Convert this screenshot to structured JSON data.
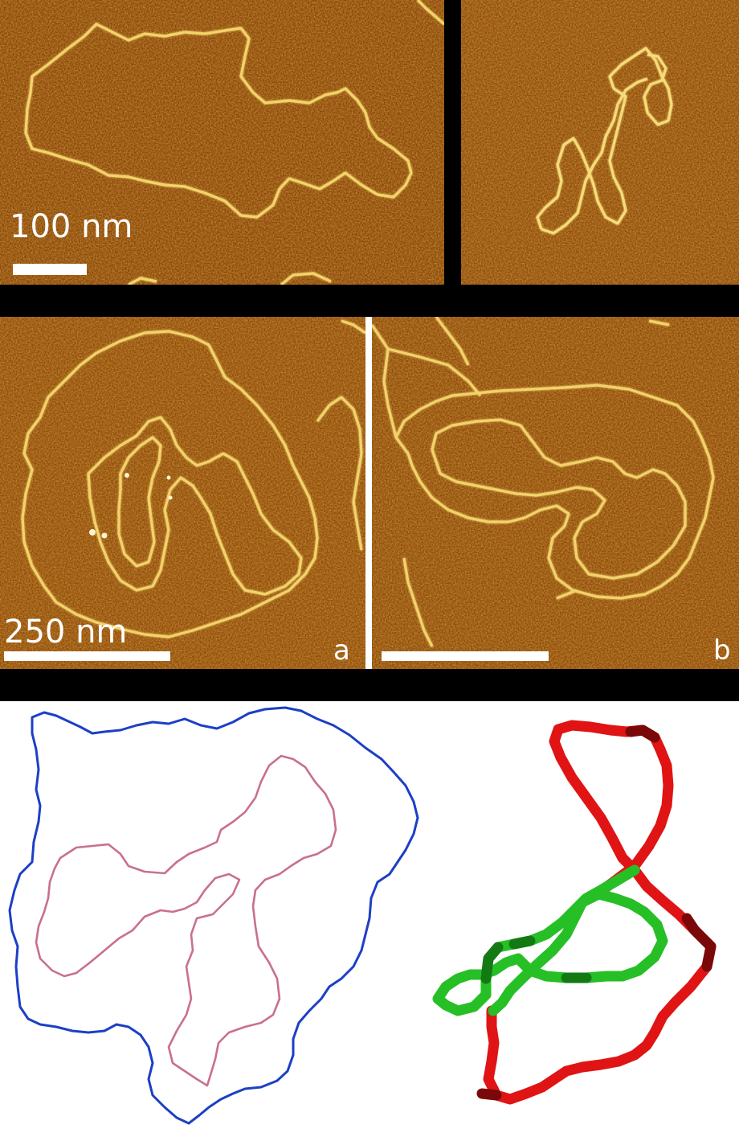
{
  "figure": {
    "top_left": {
      "scale_label": "100 nm"
    },
    "middle_left": {
      "scale_label": "250 nm",
      "panel_letter": "a"
    },
    "middle_right": {
      "panel_letter": "b"
    }
  },
  "colors": {
    "afm_background": "#8f4a0a",
    "afm_strand": "#f4d66a",
    "outer_loop": "#1a3fc4",
    "inner_loop": "#cc7090",
    "knot_red": "#e01010",
    "knot_green": "#22bb22"
  }
}
